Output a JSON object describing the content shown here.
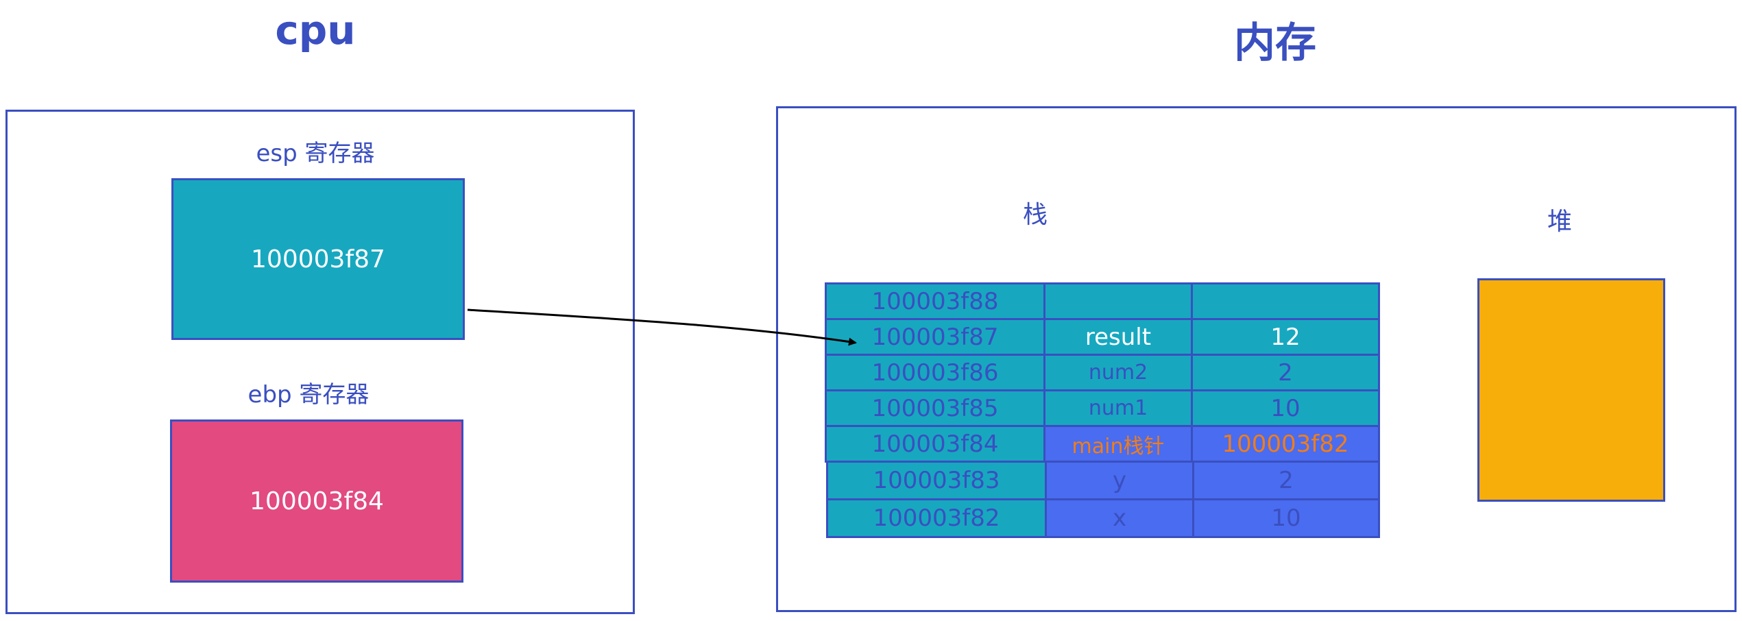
{
  "titles": {
    "cpu": "cpu",
    "memory": "内存"
  },
  "cpu": {
    "esp_label": "esp 寄存器",
    "esp_value": "100003f87",
    "ebp_label": "ebp 寄存器",
    "ebp_value": "100003f84"
  },
  "memory": {
    "stack_label": "栈",
    "heap_label": "堆",
    "stack_rows": [
      {
        "addr": "100003f88",
        "name": "",
        "value": ""
      },
      {
        "addr": "100003f87",
        "name": "result",
        "value": "12"
      },
      {
        "addr": "100003f86",
        "name": "num2",
        "value": "2"
      },
      {
        "addr": "100003f85",
        "name": "num1",
        "value": "10"
      },
      {
        "addr": "100003f84",
        "name": "main栈针",
        "value": "100003f82"
      },
      {
        "addr": "100003f83",
        "name": "y",
        "value": "2"
      },
      {
        "addr": "100003f82",
        "name": "x",
        "value": "10"
      }
    ]
  },
  "colors": {
    "outline": "#3a4fc0",
    "teal": "#17a8c0",
    "pink": "#e24a80",
    "blue": "#4a6cf0",
    "heap": "#f7ae0a",
    "orange_text": "#f07d1a"
  }
}
